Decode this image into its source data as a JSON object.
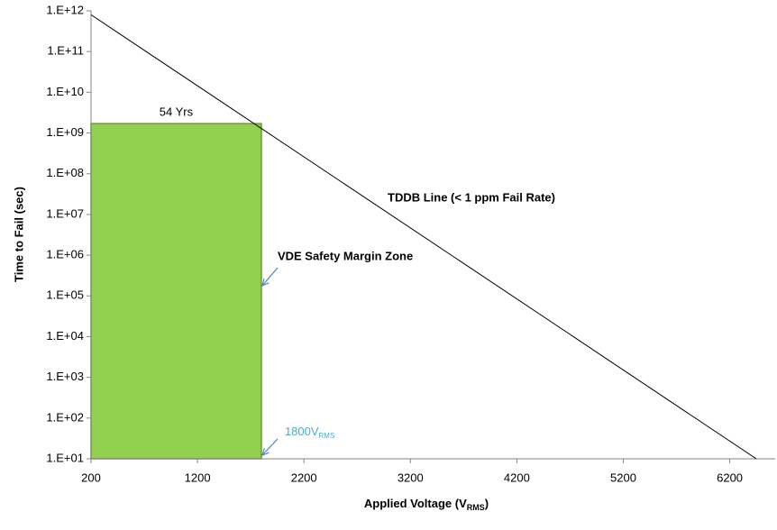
{
  "chart_data": {
    "type": "line",
    "log_y": true,
    "x_label": {
      "text": "Applied Voltage (V",
      "sub": "RMS",
      "tail": ")"
    },
    "y_label": "Time to Fail (sec)",
    "xlim": [
      200,
      6500
    ],
    "xticks": [
      200,
      1200,
      2200,
      3200,
      4200,
      5200,
      6200
    ],
    "ylim": [
      10,
      1000000000000
    ],
    "yticks": [
      {
        "value": 10,
        "label": "1.E+01"
      },
      {
        "value": 100,
        "label": "1.E+02"
      },
      {
        "value": 1000,
        "label": "1.E+03"
      },
      {
        "value": 10000,
        "label": "1.E+04"
      },
      {
        "value": 100000,
        "label": "1.E+05"
      },
      {
        "value": 1000000,
        "label": "1.E+06"
      },
      {
        "value": 10000000,
        "label": "1.E+07"
      },
      {
        "value": 100000000,
        "label": "1.E+08"
      },
      {
        "value": 1000000000,
        "label": "1.E+09"
      },
      {
        "value": 10000000000,
        "label": "1.E+10"
      },
      {
        "value": 100000000000,
        "label": "1.E+11"
      },
      {
        "value": 1000000000000,
        "label": "1.E+12"
      }
    ],
    "series": [
      {
        "name": "TDDB Line (< 1 ppm Fail Rate)",
        "color": "#000000",
        "x": [
          200,
          6450
        ],
        "values": [
          800000000000,
          10
        ]
      }
    ],
    "zone": {
      "name": "VDE Safety Margin Zone",
      "color": "#92d050",
      "edge": "#77933c",
      "x": [
        200,
        1800
      ],
      "value": 1700000000,
      "label": "54 Yrs"
    },
    "marker": {
      "text": "1800V",
      "sub": "RMS",
      "color": "#4bacc6"
    },
    "arrow_color": "#4f81bd"
  }
}
